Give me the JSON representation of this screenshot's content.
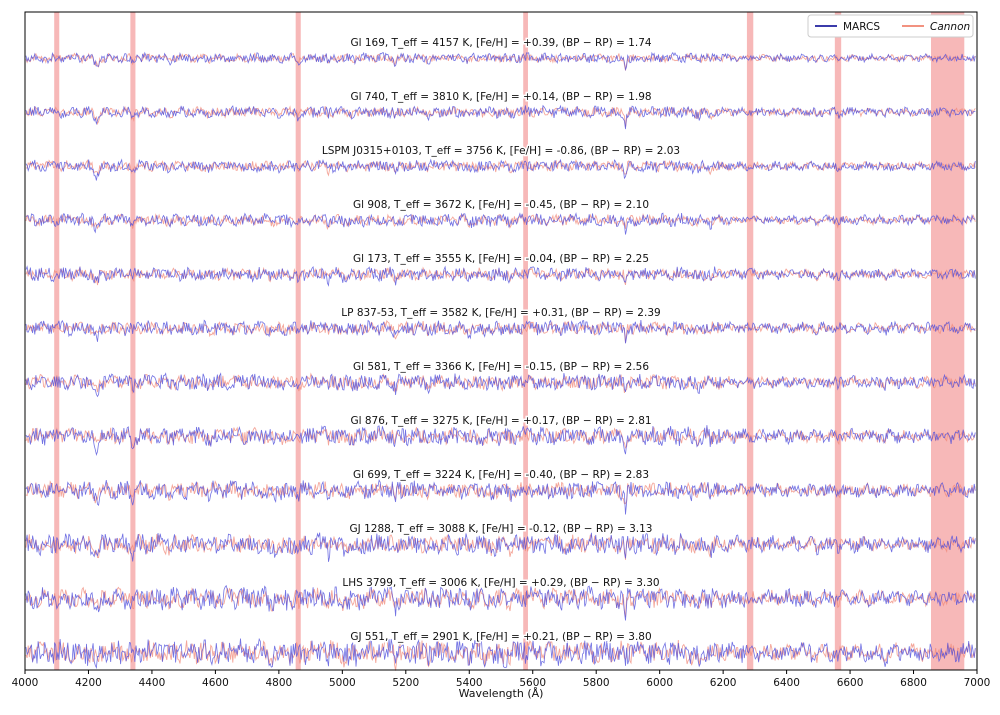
{
  "chart_data": {
    "type": "line",
    "xlabel": "Wavelength (Å)",
    "ylabel": "",
    "xlim": [
      4000,
      7000
    ],
    "xticks": [
      "4000",
      "4200",
      "4400",
      "4600",
      "4800",
      "5000",
      "5200",
      "5400",
      "5600",
      "5800",
      "6000",
      "6200",
      "6400",
      "6600",
      "6800",
      "7000"
    ],
    "grid": false,
    "legend": {
      "placement": "top-right",
      "entries": [
        {
          "name": "MARCS",
          "color": "#1f1f9e",
          "style": "normal"
        },
        {
          "name": "Cannon",
          "color": "#f0826e",
          "style": "italic"
        }
      ]
    },
    "series_colors": {
      "MARCS": "#4f4fdc",
      "Cannon": "#f08a7a"
    },
    "masked_regions": [
      [
        4092,
        4108
      ],
      [
        4332,
        4348
      ],
      [
        4853,
        4869
      ],
      [
        5570,
        5585
      ],
      [
        6275,
        6295
      ],
      [
        6552,
        6572
      ],
      [
        6855,
        6960
      ]
    ],
    "spectra": [
      {
        "label": "Gl 169, T_eff = 4157 K, [Fe/H] = +0.39, (BP − RP) = 1.74",
        "teff": 4157,
        "feh": 0.39,
        "bprp": 1.74
      },
      {
        "label": "Gl 740, T_eff = 3810 K, [Fe/H] = +0.14, (BP − RP) = 1.98",
        "teff": 3810,
        "feh": 0.14,
        "bprp": 1.98
      },
      {
        "label": "LSPM J0315+0103, T_eff = 3756 K, [Fe/H] = -0.86, (BP − RP) = 2.03",
        "teff": 3756,
        "feh": -0.86,
        "bprp": 2.03
      },
      {
        "label": "Gl 908, T_eff = 3672 K, [Fe/H] = -0.45, (BP − RP) = 2.10",
        "teff": 3672,
        "feh": -0.45,
        "bprp": 2.1
      },
      {
        "label": "Gl 173, T_eff = 3555 K, [Fe/H] = -0.04, (BP − RP) = 2.25",
        "teff": 3555,
        "feh": -0.04,
        "bprp": 2.25
      },
      {
        "label": "LP 837-53, T_eff = 3582 K, [Fe/H] = +0.31, (BP − RP) = 2.39",
        "teff": 3582,
        "feh": 0.31,
        "bprp": 2.39
      },
      {
        "label": "Gl 581, T_eff = 3366 K, [Fe/H] = -0.15, (BP − RP) = 2.56",
        "teff": 3366,
        "feh": -0.15,
        "bprp": 2.56
      },
      {
        "label": "Gl 876, T_eff = 3275 K, [Fe/H] = +0.17, (BP − RP) = 2.81",
        "teff": 3275,
        "feh": 0.17,
        "bprp": 2.81
      },
      {
        "label": "Gl 699, T_eff = 3224 K, [Fe/H] = -0.40, (BP − RP) = 2.83",
        "teff": 3224,
        "feh": -0.4,
        "bprp": 2.83
      },
      {
        "label": "GJ 1288, T_eff = 3088 K, [Fe/H] = -0.12, (BP − RP) = 3.13",
        "teff": 3088,
        "feh": -0.12,
        "bprp": 3.13
      },
      {
        "label": "LHS 3799, T_eff = 3006 K, [Fe/H] = +0.29, (BP − RP) = 3.30",
        "teff": 3006,
        "feh": 0.29,
        "bprp": 3.3
      },
      {
        "label": "GJ 551, T_eff = 2901 K, [Fe/H] = +0.21, (BP − RP) = 3.80",
        "teff": 2901,
        "feh": 0.21,
        "bprp": 3.8
      }
    ]
  }
}
